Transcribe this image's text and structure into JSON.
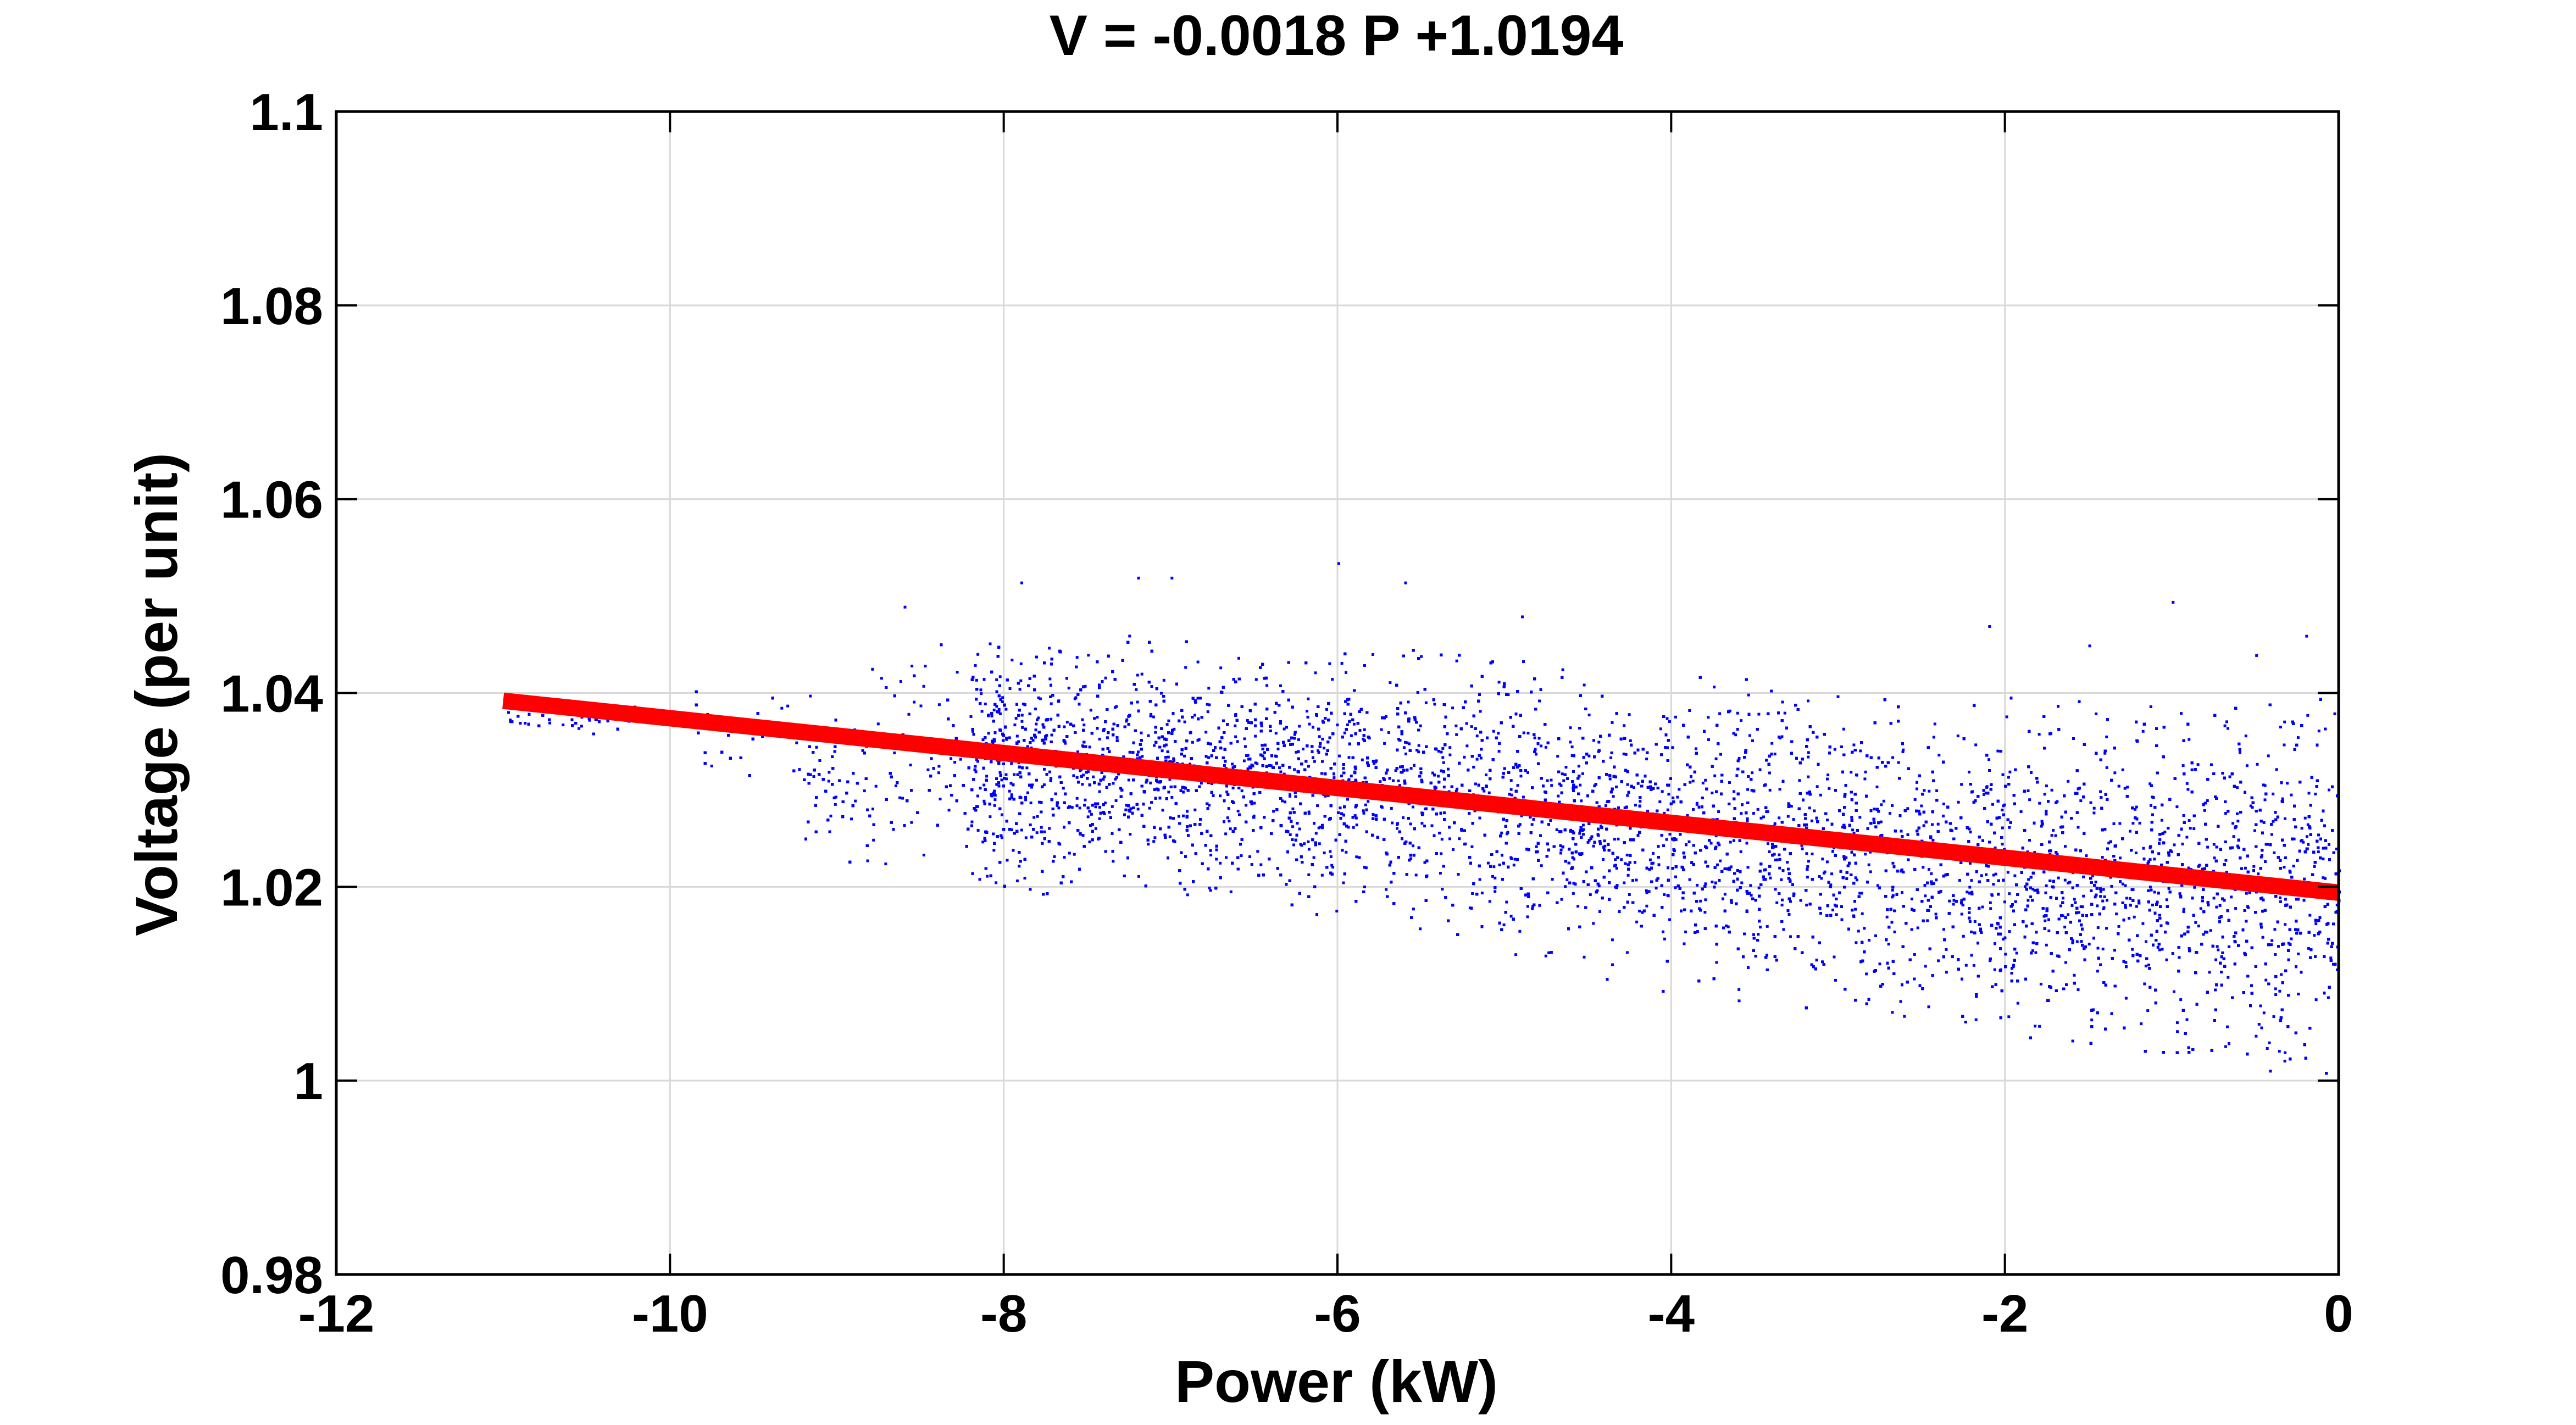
{
  "chart_data": {
    "type": "scatter",
    "title": "V = -0.0018 P +1.0194",
    "xlabel": "Power (kW)",
    "ylabel": "Voltage (per unit)",
    "xlim": [
      -12,
      0
    ],
    "ylim": [
      0.98,
      1.1
    ],
    "x_ticks": [
      "-12",
      "-10",
      "-8",
      "-6",
      "-4",
      "-2",
      "0"
    ],
    "y_ticks": [
      "0.98",
      "1",
      "1.02",
      "1.04",
      "1.06",
      "1.08",
      "1.1"
    ],
    "grid": true,
    "legend": "none",
    "series": [
      {
        "kind": "scatter",
        "color": "#0000ff",
        "marker": "dot",
        "x_range": [
          -11,
          0
        ],
        "envelope": [
          {
            "x": -11.0,
            "lower": 1.0368,
            "upper": 1.0382
          },
          {
            "x": -10.0,
            "lower": 1.034,
            "upper": 1.04
          },
          {
            "x": -9.5,
            "lower": 1.027,
            "upper": 1.041
          },
          {
            "x": -9.0,
            "lower": 1.022,
            "upper": 1.042
          },
          {
            "x": -8.5,
            "lower": 1.02,
            "upper": 1.045
          },
          {
            "x": -8.0,
            "lower": 1.019,
            "upper": 1.047
          },
          {
            "x": -7.0,
            "lower": 1.019,
            "upper": 1.046
          },
          {
            "x": -6.0,
            "lower": 1.017,
            "upper": 1.045
          },
          {
            "x": -5.0,
            "lower": 1.013,
            "upper": 1.044
          },
          {
            "x": -4.0,
            "lower": 1.009,
            "upper": 1.042
          },
          {
            "x": -3.0,
            "lower": 1.007,
            "upper": 1.041
          },
          {
            "x": -2.0,
            "lower": 1.004,
            "upper": 1.04
          },
          {
            "x": -1.0,
            "lower": 1.002,
            "upper": 1.039
          },
          {
            "x": 0.0,
            "lower": 1.0,
            "upper": 1.04
          }
        ],
        "core_band": [
          {
            "x": -9.0,
            "lower": 1.03,
            "upper": 1.038
          },
          {
            "x": -8.0,
            "lower": 1.026,
            "upper": 1.041
          },
          {
            "x": -6.0,
            "lower": 1.023,
            "upper": 1.04
          },
          {
            "x": -4.0,
            "lower": 1.017,
            "upper": 1.038
          },
          {
            "x": -2.0,
            "lower": 1.012,
            "upper": 1.035
          },
          {
            "x": 0.0,
            "lower": 1.006,
            "upper": 1.034
          }
        ],
        "outliers": [
          [
            -6.0,
            1.0535
          ],
          [
            -7.2,
            1.052
          ],
          [
            -7.9,
            1.0515
          ],
          [
            -5.6,
            1.0515
          ],
          [
            -7.0,
            1.052
          ],
          [
            -1.0,
            1.0495
          ],
          [
            -8.6,
            1.049
          ],
          [
            -4.9,
            1.048
          ],
          [
            -0.2,
            1.046
          ],
          [
            -2.1,
            1.047
          ],
          [
            -1.5,
            1.045
          ],
          [
            -0.5,
            1.044
          ]
        ],
        "n_points": 26000
      },
      {
        "kind": "line",
        "color": "#ff0000",
        "slope": -0.0018,
        "intercept": 1.0194,
        "x": [
          -11,
          0
        ],
        "y": [
          1.0392,
          1.0194
        ]
      }
    ]
  }
}
